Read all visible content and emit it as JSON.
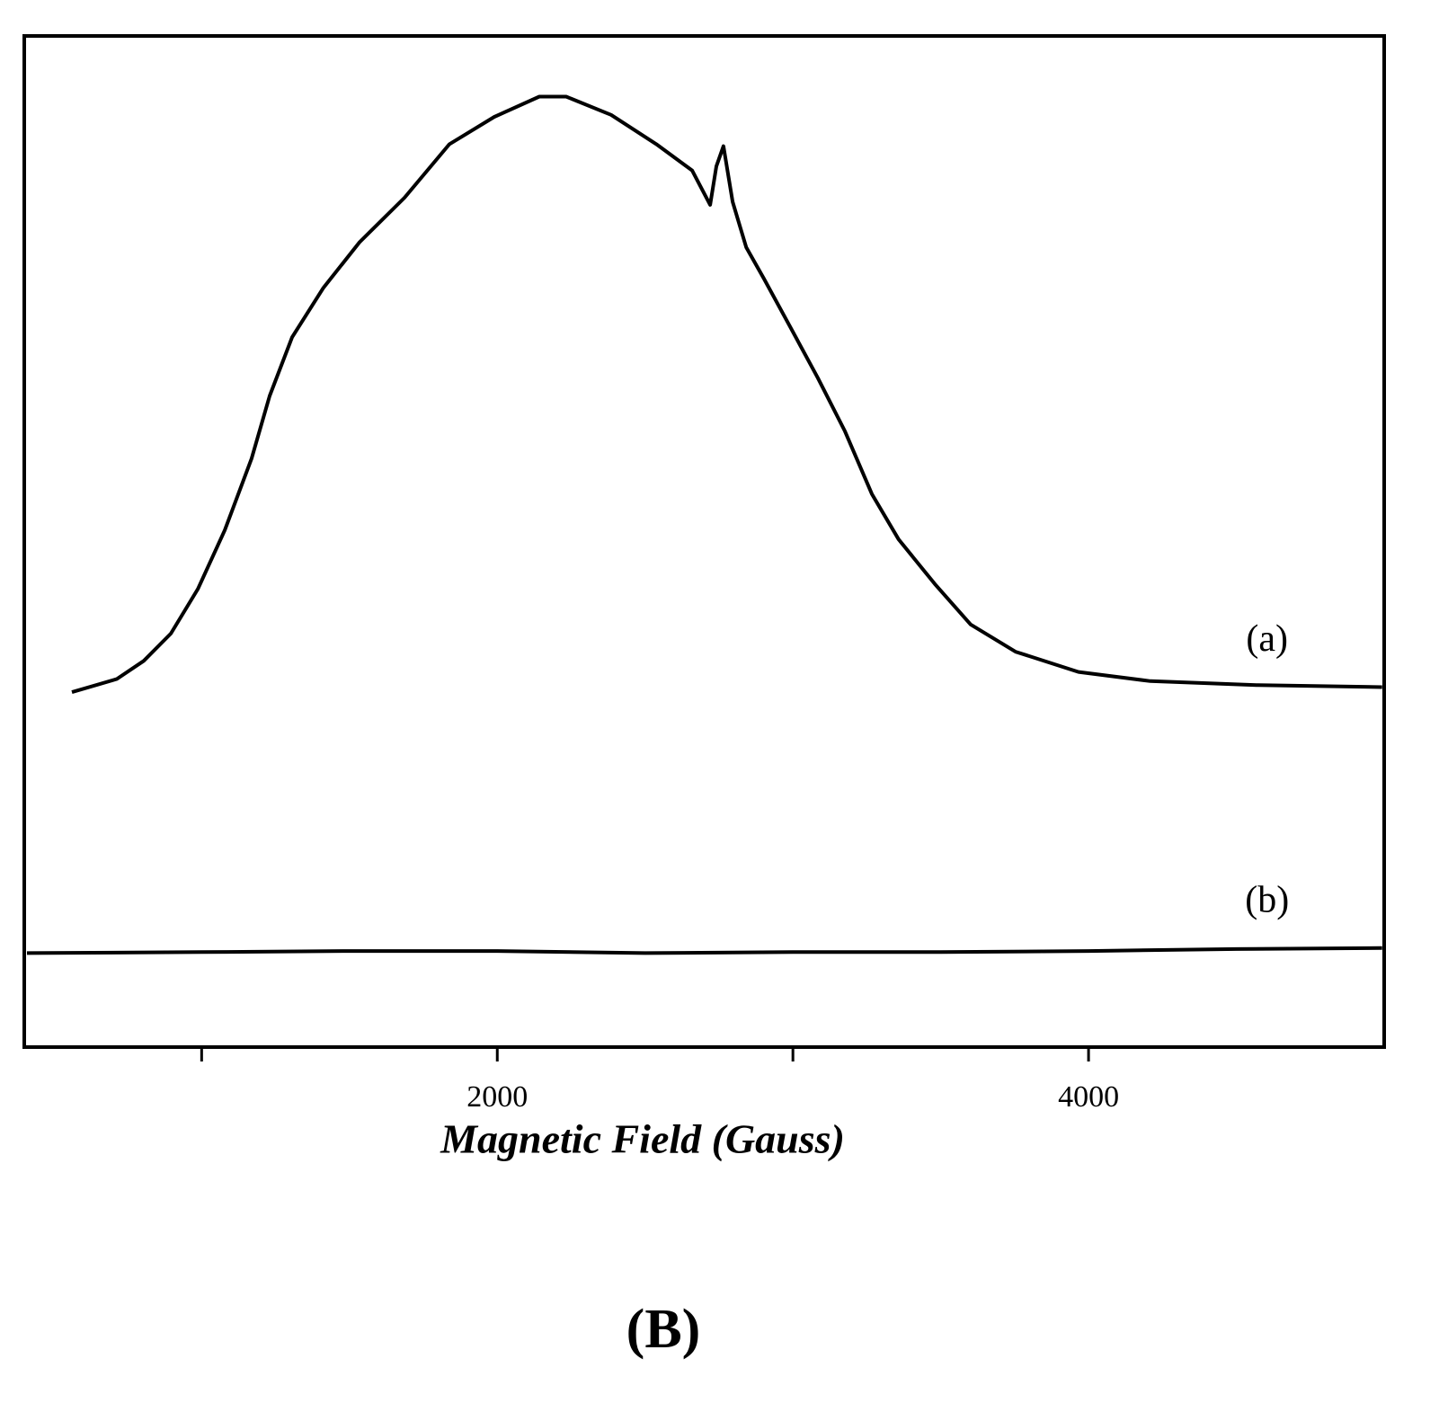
{
  "chart_data": {
    "type": "line",
    "x_label": "Magnetic Field (Gauss)",
    "panel_label": "(B)",
    "xlim": [
      400,
      5000
    ],
    "xticks": [
      2000,
      4000
    ],
    "xminorticks": [
      1000,
      3000
    ],
    "ylim": [
      0,
      100
    ],
    "grid": false,
    "series": [
      {
        "name": "(a)",
        "color": "#000000",
        "x": [
          561,
          713,
          804,
          896,
          987,
          1078,
          1169,
          1230,
          1306,
          1412,
          1534,
          1686,
          1838,
          1990,
          2142,
          2233,
          2385,
          2538,
          2659,
          2720,
          2741,
          2765,
          2796,
          2842,
          2902,
          2993,
          3084,
          3176,
          3267,
          3358,
          3480,
          3601,
          3753,
          3966,
          4209,
          4574,
          4993
        ],
        "values": [
          35.1,
          36.4,
          38.2,
          40.9,
          45.3,
          51.1,
          58.2,
          64.4,
          70.2,
          75.1,
          79.6,
          84.0,
          89.3,
          92.0,
          94.0,
          94.0,
          92.2,
          89.3,
          86.7,
          83.3,
          87.1,
          89.1,
          83.6,
          79.1,
          76.0,
          71.1,
          66.2,
          60.9,
          54.7,
          50.2,
          45.8,
          41.8,
          39.1,
          37.1,
          36.2,
          35.8,
          35.6
        ]
      },
      {
        "name": "(b)",
        "color": "#000000",
        "x": [
          409,
          1000,
          1500,
          2000,
          2500,
          3000,
          3500,
          4000,
          4500,
          4993
        ],
        "values": [
          9.3,
          9.4,
          9.5,
          9.5,
          9.3,
          9.4,
          9.4,
          9.5,
          9.7,
          9.8
        ]
      }
    ]
  }
}
